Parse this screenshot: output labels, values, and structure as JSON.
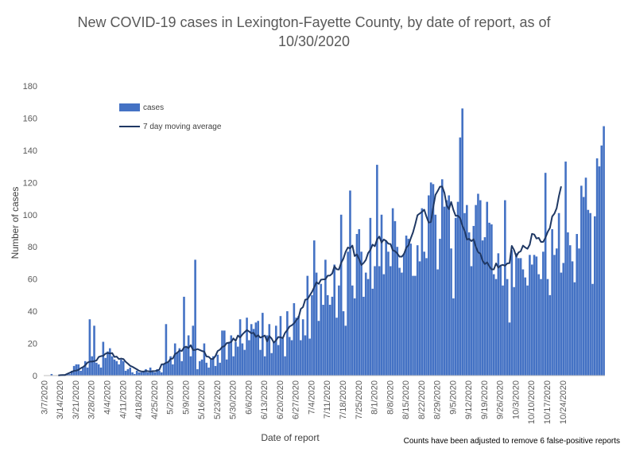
{
  "chart_data": {
    "type": "bar",
    "title_line1": "New COVID-19 cases in Lexington-Fayette County, by date of report, as of",
    "title_line2": "10/30/2020",
    "xlabel": "Date of report",
    "ylabel": "Number of cases",
    "note": "Counts have been adjusted to remove 6 false-positive reports",
    "ylim": [
      0,
      180
    ],
    "yticks": [
      0,
      20,
      40,
      60,
      80,
      100,
      120,
      140,
      160,
      180
    ],
    "grid": false,
    "legend_position": "top-left",
    "tick_labels": [
      "3/7/2020",
      "3/14/2020",
      "3/21/2020",
      "3/28/2020",
      "4/4/2020",
      "4/11/2020",
      "4/18/2020",
      "4/25/2020",
      "5/2/2020",
      "5/9/2020",
      "5/16/2020",
      "5/23/2020",
      "5/30/2020",
      "6/6/2020",
      "6/13/2020",
      "6/20/2020",
      "6/27/2020",
      "7/4/2020",
      "7/11/2020",
      "7/18/2020",
      "7/25/2020",
      "8/1/2020",
      "8/8/2020",
      "8/15/2020",
      "8/22/2020",
      "8/29/2020",
      "9/5/2020",
      "9/12/2020",
      "9/19/2020",
      "9/26/2020",
      "10/3/2020",
      "10/10/2020",
      "10/17/2020",
      "10/24/2020"
    ],
    "series": [
      {
        "name": "cases",
        "kind": "bar",
        "color": "#4472C4",
        "values": [
          0,
          0,
          0,
          1,
          0,
          0,
          0,
          0,
          0,
          0,
          1,
          1,
          3,
          6,
          7,
          7,
          3,
          5,
          9,
          5,
          35,
          12,
          31,
          8,
          7,
          5,
          21,
          11,
          15,
          17,
          12,
          10,
          9,
          7,
          10,
          9,
          3,
          4,
          5,
          2,
          1,
          3,
          2,
          2,
          3,
          4,
          2,
          5,
          3,
          2,
          4,
          3,
          2,
          7,
          32,
          8,
          12,
          7,
          20,
          14,
          17,
          9,
          49,
          18,
          25,
          12,
          31,
          72,
          4,
          9,
          10,
          20,
          8,
          5,
          10,
          12,
          6,
          13,
          8,
          28,
          28,
          10,
          21,
          25,
          12,
          21,
          18,
          35,
          20,
          16,
          36,
          22,
          32,
          29,
          33,
          34,
          16,
          39,
          12,
          25,
          32,
          14,
          21,
          31,
          19,
          37,
          23,
          12,
          40,
          24,
          22,
          45,
          36,
          37,
          22,
          35,
          25,
          62,
          23,
          50,
          84,
          64,
          34,
          57,
          44,
          72,
          50,
          44,
          49,
          69,
          36,
          56,
          100,
          40,
          31,
          77,
          115,
          56,
          48,
          88,
          91,
          77,
          49,
          64,
          60,
          98,
          54,
          68,
          131,
          68,
          100,
          63,
          84,
          77,
          68,
          104,
          96,
          80,
          67,
          64,
          76,
          87,
          85,
          82,
          62,
          62,
          81,
          71,
          104,
          77,
          73,
          112,
          120,
          119,
          100,
          66,
          85,
          122,
          105,
          109,
          112,
          79,
          48,
          98,
          108,
          148,
          166,
          101,
          106,
          89,
          68,
          93,
          106,
          113,
          109,
          84,
          86,
          108,
          95,
          94,
          63,
          60,
          76,
          68,
          56,
          109,
          60,
          33,
          78,
          55,
          76,
          73,
          73,
          66,
          61,
          56,
          75,
          69,
          75,
          74,
          63,
          60,
          77,
          126,
          60,
          50,
          91,
          75,
          79,
          101,
          64,
          70,
          133,
          89,
          81,
          71,
          58,
          88,
          79,
          118,
          111,
          123,
          103,
          101,
          57,
          99,
          135,
          130,
          143,
          155
        ]
      },
      {
        "name": "7 day moving average",
        "kind": "line",
        "color": "#1F3864",
        "values": [
          null,
          null,
          null,
          null,
          null,
          null,
          0.1,
          0.3,
          0.4,
          0.4,
          1.1,
          1.7,
          2.3,
          3.0,
          3.1,
          3.6,
          4.6,
          5.3,
          6.4,
          8.1,
          8.7,
          8.7,
          9.0,
          9.4,
          11.6,
          12.1,
          12.3,
          13.6,
          14.1,
          13.8,
          14.0,
          11.6,
          11.8,
          10.3,
          10.6,
          10.3,
          8.6,
          7.4,
          6.1,
          5.5,
          4.7,
          3.9,
          3.0,
          2.6,
          2.5,
          2.9,
          2.7,
          2.5,
          2.8,
          2.8,
          3.1,
          3.7,
          7.0,
          7.1,
          8.0,
          8.4,
          10.4,
          10.6,
          13.4,
          14.2,
          15.6,
          15.3,
          17.5,
          18.0,
          17.1,
          18.9,
          15.9,
          16.0,
          16.5,
          15.9,
          15.3,
          14.9,
          11.9,
          11.7,
          10.3,
          10.4,
          12.2,
          15.3,
          16.1,
          17.8,
          18.3,
          20.2,
          20.4,
          20.9,
          23.1,
          21.6,
          24.9,
          23.7,
          25.6,
          27.0,
          28.3,
          27.4,
          26.3,
          26.6,
          24.1,
          25.1,
          23.6,
          24.2,
          24.9,
          21.3,
          24.6,
          23.1,
          20.5,
          21.9,
          24.0,
          23.8,
          23.3,
          26.6,
          28.3,
          30.5,
          31.3,
          32.5,
          34.5,
          35.9,
          41.4,
          42.6,
          47.2,
          47.5,
          49.8,
          52.0,
          54.9,
          58.0,
          57.0,
          59.6,
          59.8,
          59.9,
          62.1,
          62.2,
          63.4,
          67.9,
          66.1,
          65.9,
          70.1,
          72.7,
          77.0,
          79.6,
          79.1,
          80.8,
          74.3,
          75.3,
          72.3,
          68.7,
          70.0,
          71.9,
          76.1,
          78.1,
          81.4,
          80.4,
          84.6,
          86.4,
          82.7,
          84.6,
          83.7,
          82.0,
          81.7,
          77.9,
          77.3,
          75.9,
          73.9,
          73.9,
          75.6,
          79.5,
          81.0,
          85.3,
          89.0,
          94.1,
          99.7,
          100.7,
          101.8,
          103.1,
          98.8,
          95.1,
          95.5,
          104.6,
          112.3,
          114.7,
          117.4,
          117.5,
          113.6,
          105.8,
          103.4,
          107.9,
          102.9,
          99.3,
          99.4,
          97.8,
          93.1,
          90.0,
          84.6,
          85.0,
          83.6,
          84.7,
          79.9,
          76.7,
          75.8,
          71.4,
          69.3,
          70.4,
          67.9,
          66.0,
          66.0,
          69.7,
          67.1,
          68.4,
          68.8,
          68.3,
          69.7,
          69.9,
          80.6,
          78.1,
          74.0,
          76.5,
          77.3,
          80.8,
          79.6,
          78.8,
          81.4,
          88.1,
          87.7,
          85.2,
          85.6,
          83.1,
          83.1,
          85.7,
          89.3,
          91.8,
          98.9,
          100.7,
          104.1,
          111.6,
          117.6
        ]
      }
    ]
  }
}
